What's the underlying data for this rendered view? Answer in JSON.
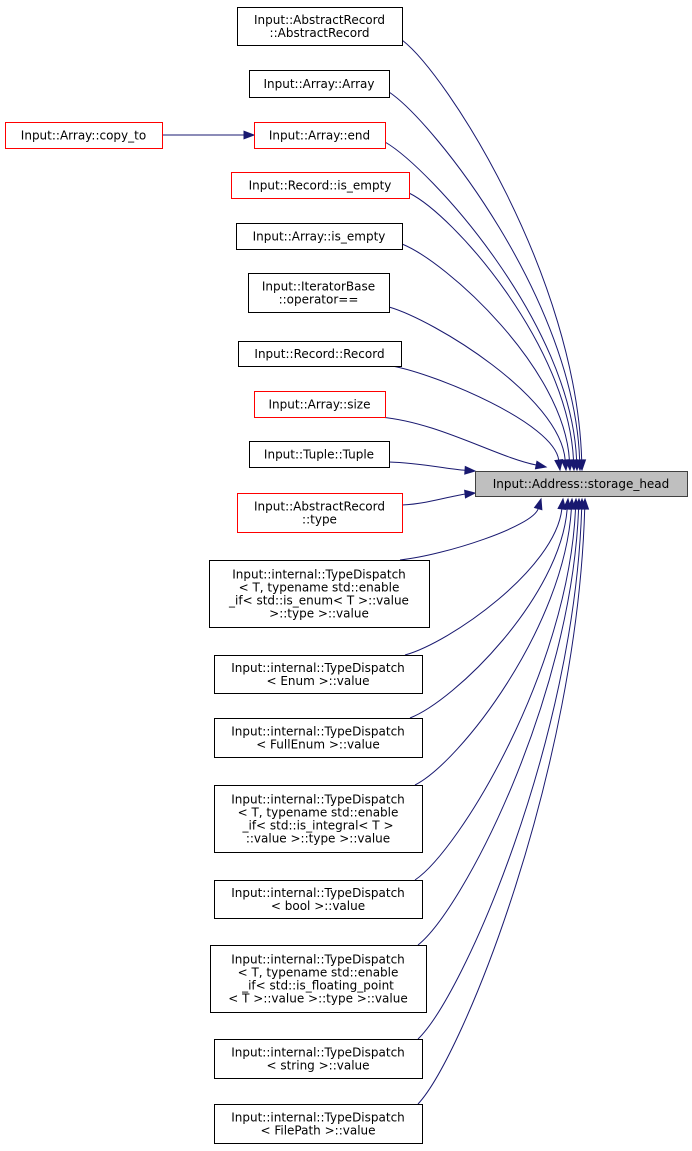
{
  "diagram": {
    "type": "doxygen-caller-graph",
    "edge_color": "#191970",
    "target": {
      "id": "storage_head",
      "lines": [
        "Input::Address::storage_head"
      ],
      "fill": "#bfbfbf",
      "border": "#404040"
    },
    "nodes": [
      {
        "id": "n1",
        "lines": [
          "Input::AbstractRecord",
          "::AbstractRecord"
        ],
        "border": "#000000"
      },
      {
        "id": "n2",
        "lines": [
          "Input::Array::Array"
        ],
        "border": "#000000"
      },
      {
        "id": "n3",
        "lines": [
          "Input::Array::copy_to"
        ],
        "border": "#ff0000"
      },
      {
        "id": "n4",
        "lines": [
          "Input::Array::end"
        ],
        "border": "#ff0000"
      },
      {
        "id": "n5",
        "lines": [
          "Input::Record::is_empty"
        ],
        "border": "#ff0000"
      },
      {
        "id": "n6",
        "lines": [
          "Input::Array::is_empty"
        ],
        "border": "#000000"
      },
      {
        "id": "n7",
        "lines": [
          "Input::IteratorBase",
          "::operator=="
        ],
        "border": "#000000"
      },
      {
        "id": "n8",
        "lines": [
          "Input::Record::Record"
        ],
        "border": "#000000"
      },
      {
        "id": "n9",
        "lines": [
          "Input::Array::size"
        ],
        "border": "#ff0000"
      },
      {
        "id": "n10",
        "lines": [
          "Input::Tuple::Tuple"
        ],
        "border": "#000000"
      },
      {
        "id": "n11",
        "lines": [
          "Input::AbstractRecord",
          "::type"
        ],
        "border": "#ff0000"
      },
      {
        "id": "n12",
        "lines": [
          "Input::internal::TypeDispatch",
          "< T, typename std::enable",
          "_if< std::is_enum< T >::value",
          ">::type >::value"
        ],
        "border": "#000000"
      },
      {
        "id": "n13",
        "lines": [
          "Input::internal::TypeDispatch",
          "< Enum >::value"
        ],
        "border": "#000000"
      },
      {
        "id": "n14",
        "lines": [
          "Input::internal::TypeDispatch",
          "< FullEnum >::value"
        ],
        "border": "#000000"
      },
      {
        "id": "n15",
        "lines": [
          "Input::internal::TypeDispatch",
          "< T, typename std::enable",
          "_if< std::is_integral< T >",
          "::value >::type >::value"
        ],
        "border": "#000000"
      },
      {
        "id": "n16",
        "lines": [
          "Input::internal::TypeDispatch",
          "< bool >::value"
        ],
        "border": "#000000"
      },
      {
        "id": "n17",
        "lines": [
          "Input::internal::TypeDispatch",
          "< T, typename std::enable",
          "_if< std::is_floating_point",
          "< T >::value >::type >::value"
        ],
        "border": "#000000"
      },
      {
        "id": "n18",
        "lines": [
          "Input::internal::TypeDispatch",
          "< string >::value"
        ],
        "border": "#000000"
      },
      {
        "id": "n19",
        "lines": [
          "Input::internal::TypeDispatch",
          "< FilePath >::value"
        ],
        "border": "#000000"
      }
    ],
    "edges": [
      {
        "from": "n1",
        "to": "storage_head"
      },
      {
        "from": "n2",
        "to": "storage_head"
      },
      {
        "from": "n3",
        "to": "n4"
      },
      {
        "from": "n4",
        "to": "storage_head"
      },
      {
        "from": "n5",
        "to": "storage_head"
      },
      {
        "from": "n6",
        "to": "storage_head"
      },
      {
        "from": "n7",
        "to": "storage_head"
      },
      {
        "from": "n8",
        "to": "storage_head"
      },
      {
        "from": "n9",
        "to": "storage_head"
      },
      {
        "from": "n10",
        "to": "storage_head"
      },
      {
        "from": "n11",
        "to": "storage_head"
      },
      {
        "from": "n12",
        "to": "storage_head"
      },
      {
        "from": "n13",
        "to": "storage_head"
      },
      {
        "from": "n14",
        "to": "storage_head"
      },
      {
        "from": "n15",
        "to": "storage_head"
      },
      {
        "from": "n16",
        "to": "storage_head"
      },
      {
        "from": "n17",
        "to": "storage_head"
      },
      {
        "from": "n18",
        "to": "storage_head"
      },
      {
        "from": "n19",
        "to": "storage_head"
      }
    ]
  }
}
